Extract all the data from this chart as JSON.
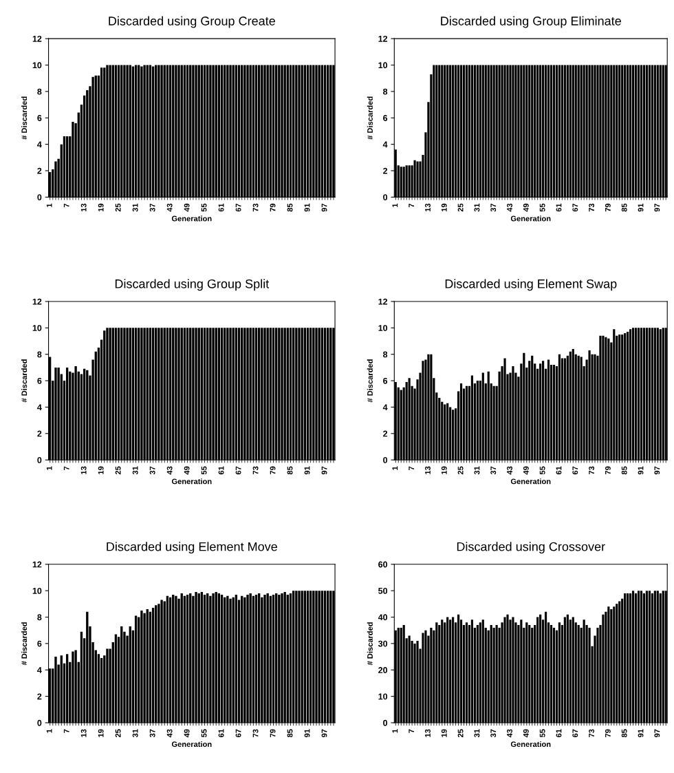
{
  "chart_data": [
    {
      "type": "bar",
      "title": "Discarded using Group Create",
      "xlabel": "Generation",
      "ylabel": "# Discarded",
      "color": "#000000",
      "ylim": [
        0,
        12
      ],
      "yticks": [
        0,
        2,
        4,
        6,
        8,
        10,
        12
      ],
      "categories": [
        "1",
        null,
        null,
        null,
        null,
        null,
        "7",
        null,
        null,
        null,
        null,
        null,
        "13",
        null,
        null,
        null,
        null,
        null,
        "19",
        null,
        null,
        null,
        null,
        null,
        "25",
        null,
        null,
        null,
        null,
        null,
        "31",
        null,
        null,
        null,
        null,
        null,
        "37",
        null,
        null,
        null,
        null,
        null,
        "43",
        null,
        null,
        null,
        null,
        null,
        "49",
        null,
        null,
        null,
        null,
        null,
        "55",
        null,
        null,
        null,
        null,
        null,
        "61",
        null,
        null,
        null,
        null,
        null,
        "67",
        null,
        null,
        null,
        null,
        null,
        "73",
        null,
        null,
        null,
        null,
        null,
        "79",
        null,
        null,
        null,
        null,
        null,
        "85",
        null,
        null,
        null,
        null,
        null,
        "91",
        null,
        null,
        null,
        null,
        null,
        "97",
        null,
        null,
        null
      ],
      "values": [
        1.9,
        2.1,
        2.7,
        2.9,
        4.0,
        4.6,
        4.6,
        4.6,
        5.7,
        5.6,
        6.4,
        7.0,
        7.7,
        8.1,
        8.4,
        9.1,
        9.2,
        9.2,
        9.8,
        9.8,
        10,
        10,
        10,
        10,
        10,
        10,
        10,
        10,
        10,
        9.9,
        10,
        10,
        9.9,
        10,
        10,
        10,
        9.9,
        10,
        10,
        10,
        10,
        10,
        10,
        10,
        10,
        10,
        10,
        10,
        10,
        10,
        10,
        10,
        10,
        10,
        10,
        10,
        10,
        10,
        10,
        10,
        10,
        10,
        10,
        10,
        10,
        10,
        10,
        10,
        10,
        10,
        10,
        10,
        10,
        10,
        10,
        10,
        10,
        10,
        10,
        10,
        10,
        10,
        10,
        10,
        10,
        10,
        10,
        10,
        10,
        10,
        10,
        10,
        10,
        10,
        10,
        10,
        10,
        10,
        10,
        10
      ]
    },
    {
      "type": "bar",
      "title": "Discarded using Group Eliminate",
      "xlabel": "Generation",
      "ylabel": "# Discarded",
      "color": "#000000",
      "ylim": [
        0,
        12
      ],
      "yticks": [
        0,
        2,
        4,
        6,
        8,
        10,
        12
      ],
      "categories": [
        "1",
        null,
        null,
        null,
        null,
        null,
        "7",
        null,
        null,
        null,
        null,
        null,
        "13",
        null,
        null,
        null,
        null,
        null,
        "19",
        null,
        null,
        null,
        null,
        null,
        "25",
        null,
        null,
        null,
        null,
        null,
        "31",
        null,
        null,
        null,
        null,
        null,
        "37",
        null,
        null,
        null,
        null,
        null,
        "43",
        null,
        null,
        null,
        null,
        null,
        "49",
        null,
        null,
        null,
        null,
        null,
        "55",
        null,
        null,
        null,
        null,
        null,
        "61",
        null,
        null,
        null,
        null,
        null,
        "67",
        null,
        null,
        null,
        null,
        null,
        "73",
        null,
        null,
        null,
        null,
        null,
        "79",
        null,
        null,
        null,
        null,
        null,
        "85",
        null,
        null,
        null,
        null,
        null,
        "91",
        null,
        null,
        null,
        null,
        null,
        "97",
        null,
        null,
        null
      ],
      "values": [
        3.6,
        2.4,
        2.3,
        2.3,
        2.4,
        2.4,
        2.4,
        2.8,
        2.7,
        2.7,
        3.2,
        4.9,
        7.2,
        9.3,
        10,
        10,
        10,
        10,
        10,
        10,
        10,
        10,
        10,
        10,
        10,
        10,
        10,
        10,
        10,
        10,
        10,
        10,
        10,
        10,
        10,
        10,
        10,
        10,
        10,
        10,
        10,
        10,
        10,
        10,
        10,
        10,
        10,
        10,
        10,
        10,
        10,
        10,
        10,
        10,
        10,
        10,
        10,
        10,
        10,
        10,
        10,
        10,
        10,
        10,
        10,
        10,
        10,
        10,
        10,
        10,
        10,
        10,
        10,
        10,
        10,
        10,
        10,
        10,
        10,
        10,
        10,
        10,
        10,
        10,
        10,
        10,
        10,
        10,
        10,
        10,
        10,
        10,
        10,
        10,
        10,
        10,
        10,
        10,
        10,
        10
      ]
    },
    {
      "type": "bar",
      "title": "Discarded using Group Split",
      "xlabel": "Generation",
      "ylabel": "# Discarded",
      "color": "#000000",
      "ylim": [
        0,
        12
      ],
      "yticks": [
        0,
        2,
        4,
        6,
        8,
        10,
        12
      ],
      "categories": [
        "1",
        null,
        null,
        null,
        null,
        null,
        "7",
        null,
        null,
        null,
        null,
        null,
        "13",
        null,
        null,
        null,
        null,
        null,
        "19",
        null,
        null,
        null,
        null,
        null,
        "25",
        null,
        null,
        null,
        null,
        null,
        "31",
        null,
        null,
        null,
        null,
        null,
        "37",
        null,
        null,
        null,
        null,
        null,
        "43",
        null,
        null,
        null,
        null,
        null,
        "49",
        null,
        null,
        null,
        null,
        null,
        "55",
        null,
        null,
        null,
        null,
        null,
        "61",
        null,
        null,
        null,
        null,
        null,
        "67",
        null,
        null,
        null,
        null,
        null,
        "73",
        null,
        null,
        null,
        null,
        null,
        "79",
        null,
        null,
        null,
        null,
        null,
        "85",
        null,
        null,
        null,
        null,
        null,
        "91",
        null,
        null,
        null,
        null,
        null,
        "97",
        null,
        null,
        null
      ],
      "values": [
        7.8,
        6.0,
        7.0,
        7.0,
        6.5,
        6.0,
        7.0,
        6.7,
        6.6,
        7.1,
        6.7,
        6.5,
        6.9,
        6.8,
        6.4,
        7.6,
        8.2,
        8.5,
        9.1,
        9.8,
        10,
        10,
        10,
        10,
        10,
        10,
        10,
        10,
        10,
        10,
        10,
        10,
        10,
        10,
        10,
        10,
        10,
        10,
        10,
        10,
        10,
        10,
        10,
        10,
        10,
        10,
        10,
        10,
        10,
        10,
        10,
        10,
        10,
        10,
        10,
        10,
        10,
        10,
        10,
        10,
        10,
        10,
        10,
        10,
        10,
        10,
        10,
        10,
        10,
        10,
        10,
        10,
        10,
        10,
        10,
        10,
        10,
        10,
        10,
        10,
        10,
        10,
        10,
        10,
        10,
        10,
        10,
        10,
        10,
        10,
        10,
        10,
        10,
        10,
        10,
        10,
        10,
        10,
        10,
        10
      ]
    },
    {
      "type": "bar",
      "title": "Discarded using Element Swap",
      "xlabel": "Generation",
      "ylabel": "# Discarded",
      "color": "#000000",
      "ylim": [
        0,
        12
      ],
      "yticks": [
        0,
        2,
        4,
        6,
        8,
        10,
        12
      ],
      "categories": [
        "1",
        null,
        null,
        null,
        null,
        null,
        "7",
        null,
        null,
        null,
        null,
        null,
        "13",
        null,
        null,
        null,
        null,
        null,
        "19",
        null,
        null,
        null,
        null,
        null,
        "25",
        null,
        null,
        null,
        null,
        null,
        "31",
        null,
        null,
        null,
        null,
        null,
        "37",
        null,
        null,
        null,
        null,
        null,
        "43",
        null,
        null,
        null,
        null,
        null,
        "49",
        null,
        null,
        null,
        null,
        null,
        "55",
        null,
        null,
        null,
        null,
        null,
        "61",
        null,
        null,
        null,
        null,
        null,
        "67",
        null,
        null,
        null,
        null,
        null,
        "73",
        null,
        null,
        null,
        null,
        null,
        "79",
        null,
        null,
        null,
        null,
        null,
        "85",
        null,
        null,
        null,
        null,
        null,
        "91",
        null,
        null,
        null,
        null,
        null,
        "97",
        null,
        null,
        null
      ],
      "values": [
        5.9,
        5.5,
        5.3,
        5.5,
        5.9,
        6.2,
        5.6,
        5.4,
        6.1,
        6.6,
        7.5,
        7.6,
        8.0,
        8.0,
        6.2,
        5.1,
        4.7,
        4.4,
        4.2,
        4.3,
        4.0,
        3.8,
        3.9,
        5.2,
        5.8,
        5.4,
        5.6,
        5.6,
        6.4,
        5.8,
        6.0,
        6.0,
        6.6,
        5.8,
        6.7,
        5.8,
        5.6,
        5.6,
        6.7,
        7.1,
        7.7,
        6.5,
        6.6,
        7.1,
        6.6,
        6.3,
        7.3,
        8.1,
        7.0,
        7.5,
        7.9,
        7.3,
        6.9,
        7.3,
        7.5,
        6.9,
        7.6,
        7.2,
        7.2,
        7.1,
        8.0,
        7.7,
        7.7,
        7.9,
        8.2,
        8.4,
        8.0,
        7.9,
        7.8,
        7.1,
        7.6,
        8.3,
        8.0,
        8.0,
        7.9,
        9.4,
        9.4,
        9.3,
        9.2,
        8.9,
        9.9,
        9.4,
        9.5,
        9.5,
        9.6,
        9.7,
        9.9,
        10,
        10,
        10,
        10,
        10,
        10,
        10,
        10,
        10,
        10,
        9.9,
        10,
        10
      ]
    },
    {
      "type": "bar",
      "title": "Discarded using Element Move",
      "xlabel": "Generation",
      "ylabel": "# Discarded",
      "color": "#000000",
      "ylim": [
        0,
        12
      ],
      "yticks": [
        0,
        2,
        4,
        6,
        8,
        10,
        12
      ],
      "categories": [
        "1",
        null,
        null,
        null,
        null,
        null,
        "7",
        null,
        null,
        null,
        null,
        null,
        "13",
        null,
        null,
        null,
        null,
        null,
        "19",
        null,
        null,
        null,
        null,
        null,
        "25",
        null,
        null,
        null,
        null,
        null,
        "31",
        null,
        null,
        null,
        null,
        null,
        "37",
        null,
        null,
        null,
        null,
        null,
        "43",
        null,
        null,
        null,
        null,
        null,
        "49",
        null,
        null,
        null,
        null,
        null,
        "55",
        null,
        null,
        null,
        null,
        null,
        "61",
        null,
        null,
        null,
        null,
        null,
        "67",
        null,
        null,
        null,
        null,
        null,
        "73",
        null,
        null,
        null,
        null,
        null,
        "79",
        null,
        null,
        null,
        null,
        null,
        "85",
        null,
        null,
        null,
        null,
        null,
        "91",
        null,
        null,
        null,
        null,
        null,
        "97",
        null,
        null,
        null
      ],
      "values": [
        4.1,
        4.1,
        5.0,
        4.4,
        5.1,
        4.5,
        5.2,
        4.6,
        5.4,
        5.5,
        4.6,
        6.9,
        6.4,
        8.4,
        7.3,
        6.1,
        5.5,
        5.2,
        4.9,
        5.1,
        5.6,
        5.6,
        6.1,
        6.7,
        6.5,
        7.3,
        6.9,
        6.6,
        7.3,
        7.0,
        8.1,
        8.0,
        8.5,
        8.3,
        8.6,
        8.4,
        8.7,
        8.9,
        9.0,
        9.3,
        9.2,
        9.6,
        9.5,
        9.7,
        9.6,
        9.4,
        9.8,
        9.6,
        9.7,
        9.8,
        9.6,
        9.9,
        9.8,
        9.9,
        9.7,
        9.8,
        9.6,
        9.8,
        9.9,
        9.8,
        9.7,
        9.5,
        9.6,
        9.4,
        9.5,
        9.7,
        9.3,
        9.6,
        9.5,
        9.7,
        9.8,
        9.6,
        9.7,
        9.8,
        9.5,
        9.7,
        9.8,
        9.6,
        9.7,
        9.8,
        9.7,
        9.8,
        9.9,
        9.7,
        9.8,
        10,
        10,
        10,
        10,
        10,
        10,
        10,
        10,
        10,
        10,
        10,
        10,
        10,
        10,
        10
      ]
    },
    {
      "type": "bar",
      "title": "Discarded using Crossover",
      "xlabel": "Generation",
      "ylabel": "# Discarded",
      "color": "#000000",
      "ylim": [
        0,
        60
      ],
      "yticks": [
        0,
        10,
        20,
        30,
        40,
        50,
        60
      ],
      "categories": [
        "1",
        null,
        null,
        null,
        null,
        null,
        "7",
        null,
        null,
        null,
        null,
        null,
        "13",
        null,
        null,
        null,
        null,
        null,
        "19",
        null,
        null,
        null,
        null,
        null,
        "25",
        null,
        null,
        null,
        null,
        null,
        "31",
        null,
        null,
        null,
        null,
        null,
        "37",
        null,
        null,
        null,
        null,
        null,
        "43",
        null,
        null,
        null,
        null,
        null,
        "49",
        null,
        null,
        null,
        null,
        null,
        "55",
        null,
        null,
        null,
        null,
        null,
        "61",
        null,
        null,
        null,
        null,
        null,
        "67",
        null,
        null,
        null,
        null,
        null,
        "73",
        null,
        null,
        null,
        null,
        null,
        "79",
        null,
        null,
        null,
        null,
        null,
        "85",
        null,
        null,
        null,
        null,
        null,
        "91",
        null,
        null,
        null,
        null,
        null,
        "97",
        null,
        null,
        null
      ],
      "values": [
        35,
        36,
        36,
        37,
        32,
        33,
        31,
        30,
        31,
        28,
        34,
        35,
        33,
        36,
        35,
        38,
        37,
        39,
        38,
        40,
        39,
        40,
        38,
        41,
        39,
        37,
        38,
        37,
        39,
        36,
        37,
        38,
        39,
        36,
        35,
        37,
        36,
        37,
        36,
        38,
        40,
        41,
        39,
        40,
        38,
        37,
        39,
        36,
        38,
        37,
        36,
        37,
        40,
        41,
        39,
        42,
        38,
        37,
        36,
        35,
        38,
        37,
        40,
        41,
        39,
        40,
        38,
        37,
        36,
        39,
        37,
        36,
        29,
        33,
        36,
        37,
        41,
        42,
        44,
        43,
        44,
        45,
        46,
        47,
        49,
        49,
        49,
        50,
        49,
        50,
        50,
        49,
        50,
        50,
        49,
        50,
        50,
        49,
        50,
        50
      ]
    }
  ]
}
